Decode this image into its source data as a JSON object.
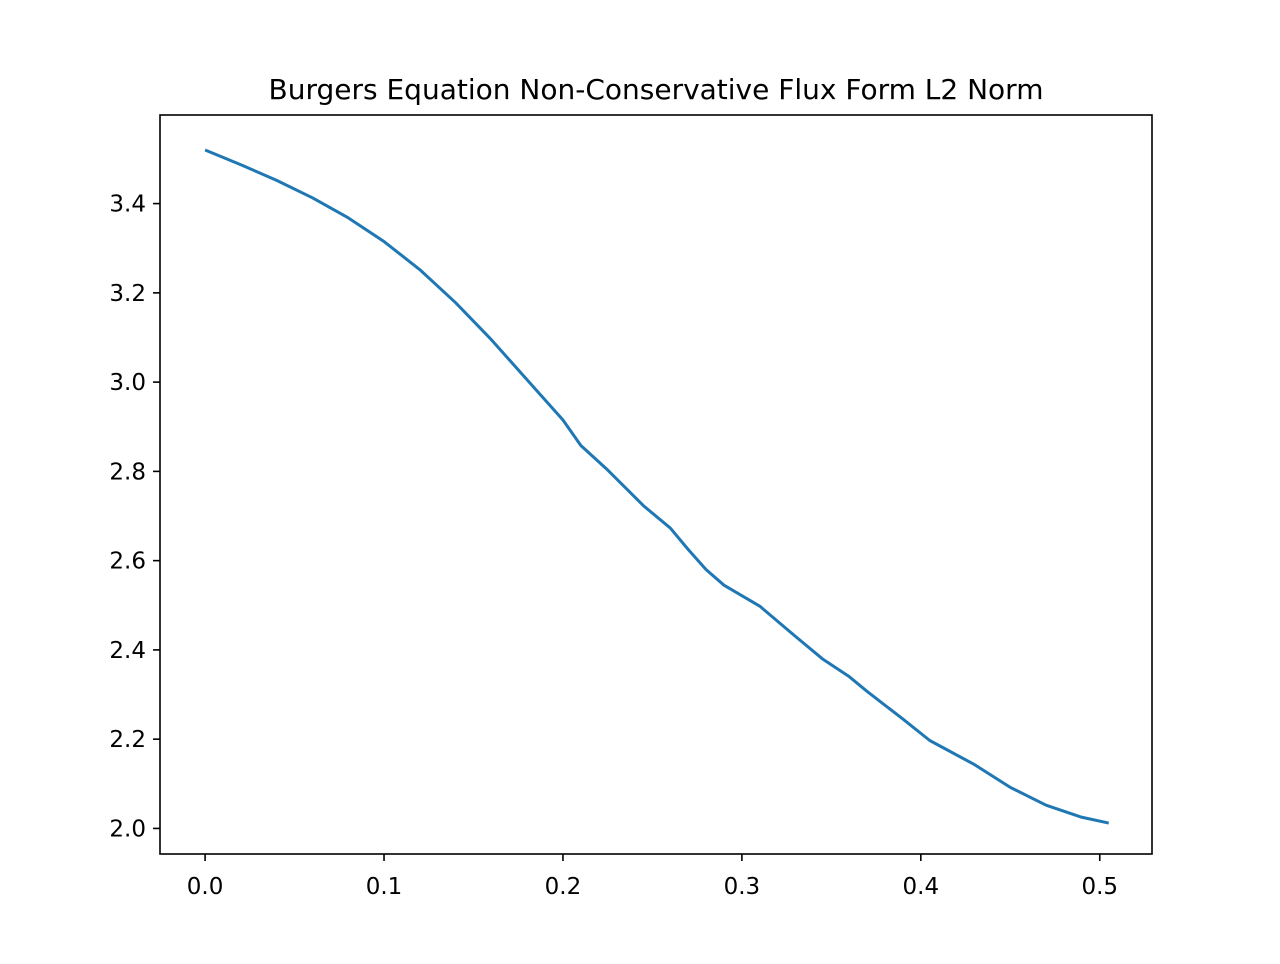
{
  "chart_data": {
    "type": "line",
    "title": "Burgers Equation Non-Conservative Flux Form L2 Norm",
    "xlabel": "",
    "ylabel": "",
    "xlim": [
      -0.0252,
      0.5292
    ],
    "ylim": [
      1.9427,
      3.5985
    ],
    "x_ticks": [
      0.0,
      0.1,
      0.2,
      0.3,
      0.4,
      0.5
    ],
    "x_tick_labels": [
      "0.0",
      "0.1",
      "0.2",
      "0.3",
      "0.4",
      "0.5"
    ],
    "y_ticks": [
      2.0,
      2.2,
      2.4,
      2.6,
      2.8,
      3.0,
      3.2,
      3.4
    ],
    "y_tick_labels": [
      "2.0",
      "2.2",
      "2.4",
      "2.6",
      "2.8",
      "3.0",
      "3.2",
      "3.4"
    ],
    "grid": false,
    "series": [
      {
        "color": "#1f77b4",
        "x": [
          0.0,
          0.02,
          0.04,
          0.06,
          0.08,
          0.1,
          0.12,
          0.14,
          0.16,
          0.18,
          0.2,
          0.21,
          0.225,
          0.245,
          0.26,
          0.27,
          0.28,
          0.29,
          0.31,
          0.33,
          0.345,
          0.36,
          0.37,
          0.39,
          0.405,
          0.43,
          0.45,
          0.47,
          0.49,
          0.505
        ],
        "y": [
          3.52,
          3.487,
          3.452,
          3.413,
          3.368,
          3.315,
          3.252,
          3.178,
          3.095,
          3.005,
          2.915,
          2.858,
          2.803,
          2.723,
          2.673,
          2.625,
          2.58,
          2.545,
          2.498,
          2.43,
          2.38,
          2.34,
          2.307,
          2.245,
          2.197,
          2.143,
          2.092,
          2.052,
          2.025,
          2.012
        ]
      }
    ]
  }
}
